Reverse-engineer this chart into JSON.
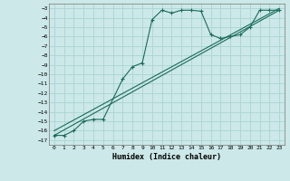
{
  "xlabel": "Humidex (Indice chaleur)",
  "ylabel": "",
  "background_color": "#cce8e8",
  "grid_color": "#aad4d4",
  "line_color": "#1a6b5a",
  "xlim": [
    -0.5,
    23.5
  ],
  "ylim": [
    -17.5,
    -2.5
  ],
  "xticks": [
    0,
    1,
    2,
    3,
    4,
    5,
    6,
    7,
    8,
    9,
    10,
    11,
    12,
    13,
    14,
    15,
    16,
    17,
    18,
    19,
    20,
    21,
    22,
    23
  ],
  "yticks": [
    -17,
    -16,
    -15,
    -14,
    -13,
    -12,
    -11,
    -10,
    -9,
    -8,
    -7,
    -6,
    -5,
    -4,
    -3
  ],
  "series1_x": [
    0,
    1,
    2,
    3,
    4,
    5,
    7,
    8,
    9,
    10,
    11,
    12,
    13,
    14,
    15,
    16,
    17,
    18,
    19,
    20,
    21,
    22,
    23
  ],
  "series1_y": [
    -16.5,
    -16.5,
    -16.0,
    -15.0,
    -14.8,
    -14.8,
    -10.5,
    -9.2,
    -8.8,
    -4.2,
    -3.2,
    -3.5,
    -3.2,
    -3.2,
    -3.3,
    -5.8,
    -6.2,
    -6.0,
    -5.8,
    -5.0,
    -3.2,
    -3.2,
    -3.2
  ],
  "series2_x": [
    0,
    23
  ],
  "series2_y": [
    -16.5,
    -3.2
  ],
  "series3_x": [
    0,
    23
  ],
  "series3_y": [
    -16.0,
    -3.0
  ]
}
